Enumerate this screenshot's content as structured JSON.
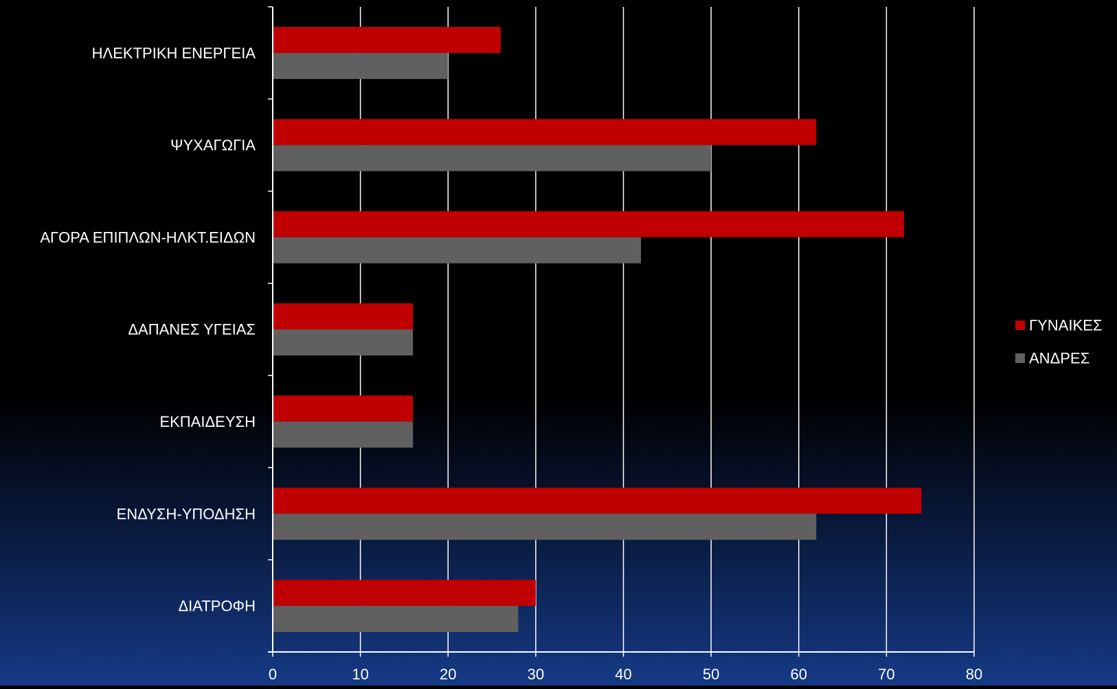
{
  "chart_data": {
    "type": "bar",
    "orientation": "horizontal",
    "title": "",
    "xlabel": "",
    "ylabel": "",
    "xlim": [
      0,
      80
    ],
    "x_ticks": [
      0,
      10,
      20,
      30,
      40,
      50,
      60,
      70,
      80
    ],
    "grid": "vertical",
    "legend_position": "right",
    "categories": [
      "ΗΛΕΚΤΡΙΚΗ ΕΝΕΡΓΕΙΑ",
      "ΨΥΧΑΓΩΓΙΑ",
      "ΑΓΟΡΑ ΕΠΙΠΛΩΝ-ΗΛΚΤ.ΕΙΔΩΝ",
      "ΔΑΠΑΝΕΣ ΥΓΕΙΑΣ",
      "ΕΚΠΑΙΔΕΥΣΗ",
      "ΕΝΔΥΣΗ-ΥΠΟΔΗΣΗ",
      "ΔΙΑΤΡΟΦΗ"
    ],
    "series": [
      {
        "name": "ΓΥΝΑΙΚΕΣ",
        "color": "#c00000",
        "values": [
          26,
          62,
          72,
          16,
          16,
          74,
          30
        ]
      },
      {
        "name": "ΑΝΔΡΕΣ",
        "color": "#606060",
        "values": [
          20,
          50,
          42,
          16,
          16,
          62,
          28
        ]
      }
    ]
  }
}
